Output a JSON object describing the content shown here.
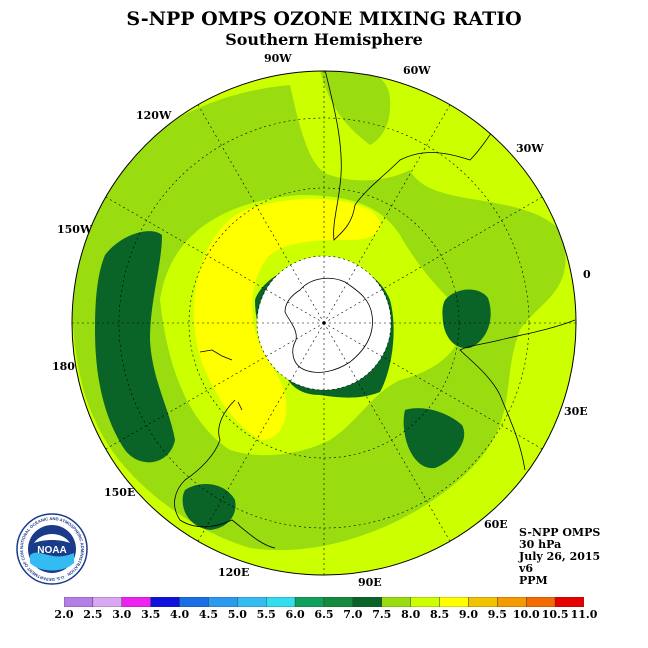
{
  "title": "S-NPP OMPS OZONE MIXING RATIO",
  "subtitle": "Southern Hemisphere",
  "longitude_labels": [
    "90W",
    "60W",
    "30W",
    "0",
    "30E",
    "60E",
    "90E",
    "120E",
    "150E",
    "180",
    "150W",
    "120W"
  ],
  "info": {
    "instrument": "S-NPP OMPS",
    "level": "30 hPa",
    "date": "July 26, 2015",
    "version": "v6",
    "units": "PPM"
  },
  "colorbar": {
    "ticks": [
      "2.0",
      "2.5",
      "3.0",
      "3.5",
      "4.0",
      "4.5",
      "5.0",
      "5.5",
      "6.0",
      "6.5",
      "7.0",
      "7.5",
      "8.0",
      "8.5",
      "9.0",
      "9.5",
      "10.0",
      "10.5",
      "11.0"
    ],
    "colors": [
      "#b57ee6",
      "#d9a8f2",
      "#ee22ee",
      "#1111dd",
      "#1a6ee6",
      "#2a9af0",
      "#33bbf2",
      "#33ddf0",
      "#11a05a",
      "#148a3c",
      "#0a6428",
      "#99dd11",
      "#ccff00",
      "#ffff00",
      "#f2c200",
      "#f29a00",
      "#f26a00",
      "#e60000",
      "#8a5a3c"
    ]
  },
  "logo": {
    "name": "NOAA",
    "ring_text": "NATIONAL OCEANIC AND ATMOSPHERIC ADMINISTRATION · U.S. DEPARTMENT OF COMMERCE"
  },
  "map_colors": {
    "background": "#ccff00",
    "mid_green": "#99dd11",
    "dark_green": "#0a6428",
    "yellow": "#ffff00",
    "no_data": "#ffffff"
  }
}
